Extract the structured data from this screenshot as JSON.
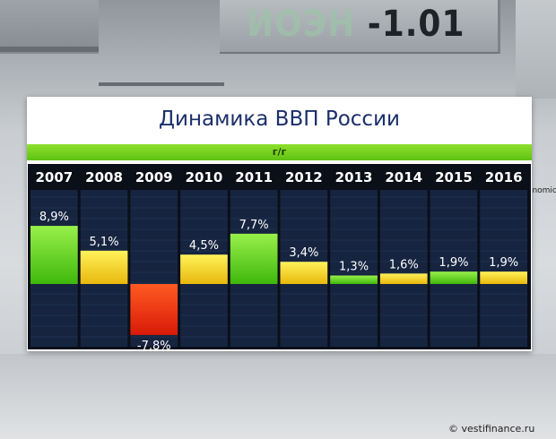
{
  "background": {
    "ticker": "-1.01",
    "ticker_faded": "ИОЭН",
    "side_label": "conomic"
  },
  "header": {
    "title": "Динамика ВВП России",
    "subtitle": "г/г"
  },
  "footer": {
    "credit": "© vestifinance.ru"
  },
  "colors": {
    "title": "#1b2f6b",
    "accent_green": "#6ccf1c",
    "column_bg": "#16243f",
    "header_bg": "#0b0f18",
    "positive_high": "#5bd116",
    "positive_mid": "#f2d41a",
    "negative": "#ef2a10"
  },
  "chart_data": {
    "type": "bar",
    "title": "Динамика ВВП России",
    "subtitle": "г/г",
    "categories": [
      "2007",
      "2008",
      "2009",
      "2010",
      "2011",
      "2012",
      "2013",
      "2014",
      "2015",
      "2016"
    ],
    "values": [
      8.9,
      5.1,
      -7.8,
      4.5,
      7.7,
      3.4,
      1.3,
      1.6,
      1.9,
      1.9
    ],
    "value_labels": [
      "8,9%",
      "5,1%",
      "-7,8%",
      "4,5%",
      "7,7%",
      "3,4%",
      "1,3%",
      "1,6%",
      "1,9%",
      "1,9%"
    ],
    "bar_colors": [
      "green",
      "yellow",
      "red",
      "yellow",
      "green",
      "yellow",
      "green",
      "yellow",
      "green",
      "yellow"
    ],
    "ylim": [
      -9.6,
      14.4
    ]
  }
}
